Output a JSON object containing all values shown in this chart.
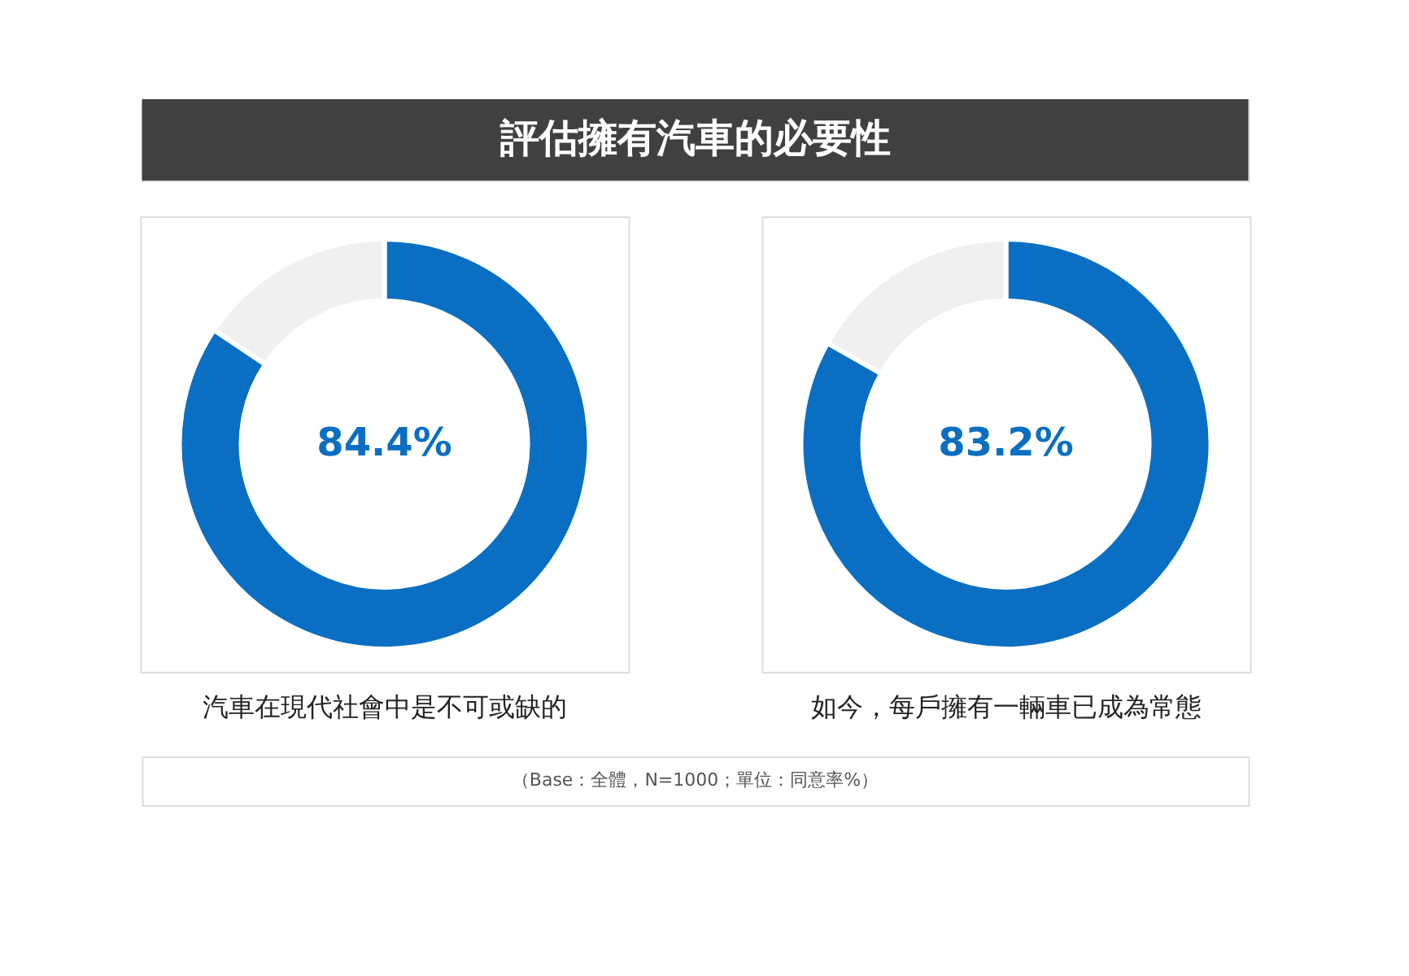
{
  "chart_data": [
    {
      "type": "donut",
      "title": "評估擁有汽車的必要性",
      "xlabel": "汽車在現代社會中是不可或缺的",
      "categories": [
        null,
        null
      ],
      "values": [
        84.4,
        15.6
      ],
      "colors": [
        "#0a6fc2",
        "#f0f0f0"
      ],
      "value_labels": [
        "84.4%",
        null
      ],
      "legend": false
    },
    {
      "type": "donut",
      "xlabel": "如今，每戶擁有一輛車已成為常態",
      "categories": [
        null,
        null
      ],
      "values": [
        83.2,
        16.8
      ],
      "colors": [
        "#0a6fc2",
        "#f0f0f0"
      ],
      "value_labels": [
        "83.2%",
        null
      ],
      "legend": false,
      "annotations": [
        "（Base：全體，N=1000；單位：同意率%）"
      ]
    }
  ]
}
